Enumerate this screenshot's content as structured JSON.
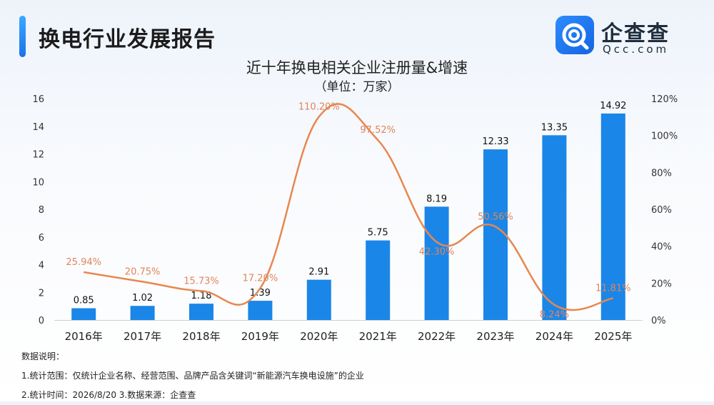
{
  "header": {
    "title": "换电行业发展报告"
  },
  "logo": {
    "name": "企查查",
    "domain": "Qcc.com",
    "icon": "qcc-logo-icon",
    "color": "#1a73e8"
  },
  "colors": {
    "bar": "#1a86e8",
    "line": "#e8874f",
    "line_label": "#e0855a"
  },
  "chart_data": {
    "type": "bar",
    "title": "近十年换电相关企业注册量&增速",
    "subtitle": "（单位：万家）",
    "categories": [
      "2016年",
      "2017年",
      "2018年",
      "2019年",
      "2020年",
      "2021年",
      "2022年",
      "2023年",
      "2024年",
      "2025年"
    ],
    "series": [
      {
        "type": "bar",
        "axis": "left",
        "values": [
          0.85,
          1.02,
          1.18,
          1.39,
          2.91,
          5.75,
          8.19,
          12.33,
          13.35,
          14.92
        ],
        "labels": [
          "0.85",
          "1.02",
          "1.18",
          "1.39",
          "2.91",
          "5.75",
          "8.19",
          "12.33",
          "13.35",
          "14.92"
        ]
      },
      {
        "type": "line",
        "axis": "right",
        "values": [
          25.94,
          20.75,
          15.73,
          17.2,
          110.2,
          97.52,
          42.3,
          50.56,
          8.24,
          11.81
        ],
        "labels": [
          "25.94%",
          "20.75%",
          "15.73%",
          "17.20%",
          "110.20%",
          "97.52%",
          "42.30%",
          "50.56%",
          "8.24%",
          "11.81%"
        ]
      }
    ],
    "y_left": {
      "min": 0,
      "max": 16,
      "ticks": [
        "0",
        "2",
        "4",
        "6",
        "8",
        "10",
        "12",
        "14",
        "16"
      ]
    },
    "y_right": {
      "min": 0,
      "max": 120,
      "ticks": [
        "0%",
        "20%",
        "40%",
        "60%",
        "80%",
        "100%",
        "120%"
      ]
    },
    "grid": false,
    "legend": "none"
  },
  "notes": {
    "heading": "数据说明：",
    "line1": "1.统计范围：仅统计企业名称、经营范围、品牌产品含关键词“新能源汽车换电设施”的企业",
    "line2": "2.统计时间：2026/8/20  3.数据来源：企查查"
  }
}
